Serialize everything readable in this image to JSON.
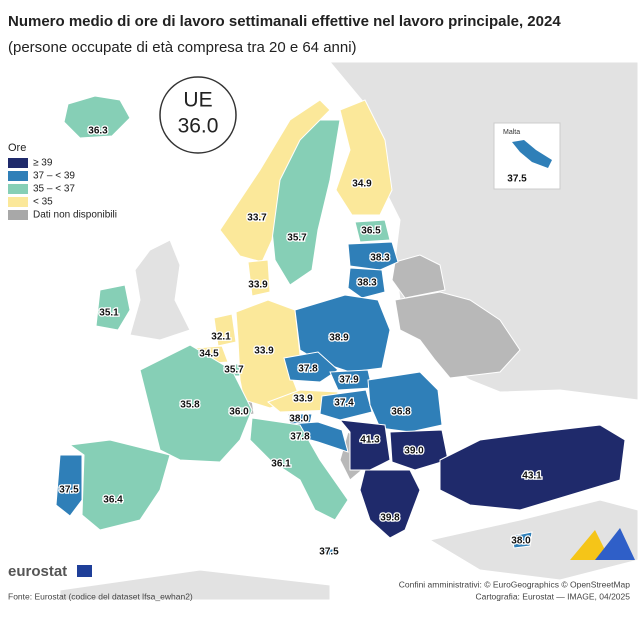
{
  "header": {
    "title": "Numero medio di ore di lavoro settimanali effettive nel lavoro principale, 2024",
    "subtitle": "(persone occupate di età compresa tra 20 e 64 anni)"
  },
  "eu_badge": {
    "label": "UE",
    "value": "36.0"
  },
  "legend": {
    "title": "Ore",
    "items": [
      {
        "label": "≥ 39",
        "color": "#1f2a6b"
      },
      {
        "label": "37 – < 39",
        "color": "#2f7fb8"
      },
      {
        "label": "35 – < 37",
        "color": "#86cfb6"
      },
      {
        "label": "< 35",
        "color": "#fbe89a"
      },
      {
        "label": "Dati non disponibili",
        "color": "#a8a8a8"
      }
    ]
  },
  "inset": {
    "title": "Malta",
    "value": "37.5"
  },
  "regions": [
    "36.3",
    "34.9",
    "35.7",
    "33.7",
    "36.5",
    "38.3",
    "38.3",
    "35.1",
    "33.9",
    "32.1",
    "34.5",
    "35.7",
    "33.9",
    "38.9",
    "37.8",
    "37.9",
    "33.9",
    "37.4",
    "36.8",
    "38.0",
    "37.8",
    "35.8",
    "36.0",
    "41.3",
    "39.0",
    "36.1",
    "37.5",
    "36.4",
    "43.1",
    "39.8",
    "38.0",
    "37.5"
  ],
  "footer": {
    "logo": "eurostat",
    "source": "Fonte: Eurostat (codice del dataset lfsa_ewhan2)",
    "credits": [
      "Confini amministrativi: © EuroGeographics © OpenStreetMap",
      "Cartografia: Eurostat — IMAGE, 04/2025"
    ]
  }
}
